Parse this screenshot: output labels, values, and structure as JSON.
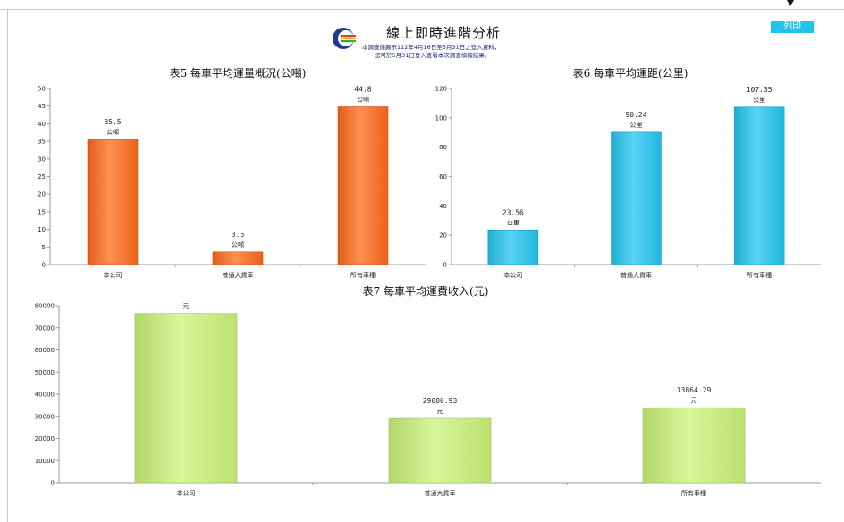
{
  "header": {
    "title": "線上即時進階分析",
    "note_line1": "本調查係顯示112年4月16日至5月31日之登入資料，",
    "note_line2": "您可於5月31日登入查看本次調查填報結果。",
    "print_label": "列印"
  },
  "colors": {
    "orange": "#ff6a1a",
    "blue": "#22c6f0",
    "green": "#cbf37a",
    "print_button": "#22c2ee"
  },
  "chart_data": [
    {
      "id": "chart5",
      "type": "bar",
      "title": "表5 每車平均運量概況(公噸)",
      "categories": [
        "本公司",
        "普通大貨車",
        "所有車種"
      ],
      "values": [
        35.5,
        3.6,
        44.8
      ],
      "value_labels": [
        "35.5",
        "3.6",
        "44.8"
      ],
      "unit_labels": [
        "公噸",
        "公噸",
        "公噸"
      ],
      "ylim": [
        0,
        50
      ],
      "yticks": [
        "0",
        "5",
        "10",
        "15",
        "20",
        "25",
        "30",
        "35",
        "40",
        "45",
        "50"
      ],
      "grid": false
    },
    {
      "id": "chart6",
      "type": "bar",
      "title": "表6 每車平均運距(公里)",
      "categories": [
        "本公司",
        "普通大貨車",
        "所有車種"
      ],
      "values": [
        23.56,
        90.24,
        107.35
      ],
      "value_labels": [
        "23.56",
        "90.24",
        "107.35"
      ],
      "unit_labels": [
        "公里",
        "公里",
        "公里"
      ],
      "ylim": [
        0,
        120
      ],
      "yticks": [
        "0",
        "20",
        "40",
        "60",
        "80",
        "100",
        "120"
      ],
      "grid": false
    },
    {
      "id": "chart7",
      "type": "bar",
      "title": "表7 每車平均運費收入(元)",
      "categories": [
        "本公司",
        "普通大貨車",
        "所有車種"
      ],
      "values": [
        76500,
        29080.93,
        33864.29
      ],
      "value_labels": [
        "",
        "29080.93",
        "33864.29"
      ],
      "unit_labels": [
        "元",
        "元",
        "元"
      ],
      "ylim": [
        0,
        80000
      ],
      "yticks": [
        "0",
        "10000",
        "20000",
        "30000",
        "40000",
        "50000",
        "60000",
        "70000",
        "80000"
      ],
      "grid": false
    }
  ]
}
